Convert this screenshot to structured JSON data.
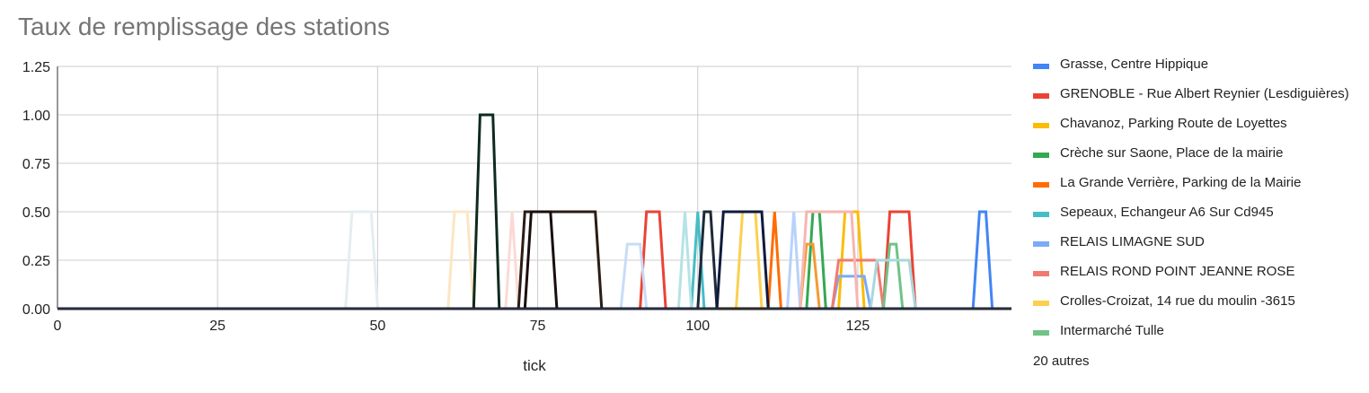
{
  "chart_data": {
    "type": "line",
    "title": "Taux de remplissage des stations",
    "xlabel": "tick",
    "ylabel": "",
    "xlim": [
      0,
      149
    ],
    "ylim": [
      0,
      1.25
    ],
    "x_ticks": [
      "0",
      "25",
      "50",
      "75",
      "100",
      "125"
    ],
    "y_ticks": [
      "0.00",
      "0.25",
      "0.50",
      "0.75",
      "1.00",
      "1.25"
    ],
    "grid": true,
    "legend_position": "right",
    "legend_more": "20 autres",
    "series": [
      {
        "name": "Grasse, Centre Hippique",
        "color": "#4285f4",
        "points": [
          [
            0,
            0
          ],
          [
            143,
            0
          ],
          [
            144,
            0.5
          ],
          [
            145,
            0.5
          ],
          [
            146,
            0
          ],
          [
            149,
            0
          ]
        ]
      },
      {
        "name": "GRENOBLE - Rue Albert Reynier (Lesdiguières)",
        "color": "#ea4335",
        "points": [
          [
            0,
            0
          ],
          [
            91,
            0
          ],
          [
            92,
            0.5
          ],
          [
            94,
            0.5
          ],
          [
            95,
            0
          ],
          [
            129,
            0
          ],
          [
            130,
            0.5
          ],
          [
            133,
            0.5
          ],
          [
            134,
            0
          ],
          [
            149,
            0
          ]
        ]
      },
      {
        "name": "Chavanoz, Parking Route de Loyettes",
        "color": "#fbbc04",
        "points": [
          [
            0,
            0
          ],
          [
            122,
            0
          ],
          [
            123,
            0.5
          ],
          [
            125,
            0.5
          ],
          [
            126,
            0
          ],
          [
            149,
            0
          ]
        ]
      },
      {
        "name": "Crèche sur Saone, Place de la mairie",
        "color": "#34a853",
        "points": [
          [
            0,
            0
          ],
          [
            117,
            0
          ],
          [
            118,
            0.5
          ],
          [
            119,
            0.5
          ],
          [
            120,
            0
          ],
          [
            149,
            0
          ]
        ]
      },
      {
        "name": "La Grande Verrière, Parking de la Mairie",
        "color": "#ff6d01",
        "points": [
          [
            0,
            0
          ],
          [
            111,
            0
          ],
          [
            112,
            0.5
          ],
          [
            113,
            0
          ],
          [
            149,
            0
          ]
        ]
      },
      {
        "name": "Sepeaux, Echangeur A6 Sur Cd945",
        "color": "#46bdc6",
        "points": [
          [
            0,
            0
          ],
          [
            99,
            0
          ],
          [
            100,
            0.5
          ],
          [
            101,
            0
          ],
          [
            149,
            0
          ]
        ]
      },
      {
        "name": "RELAIS LIMAGNE SUD",
        "color": "#7baaf7",
        "points": [
          [
            0,
            0
          ],
          [
            121,
            0
          ],
          [
            122,
            0.167
          ],
          [
            126,
            0.167
          ],
          [
            127,
            0
          ],
          [
            149,
            0
          ]
        ]
      },
      {
        "name": "RELAIS  ROND POINT JEANNE ROSE",
        "color": "#f07b72",
        "points": [
          [
            0,
            0
          ],
          [
            121,
            0
          ],
          [
            122,
            0.25
          ],
          [
            128,
            0.25
          ],
          [
            129,
            0
          ],
          [
            149,
            0
          ]
        ]
      },
      {
        "name": "Crolles-Croizat, 14 rue du moulin -3615",
        "color": "#fcd04f",
        "points": [
          [
            0,
            0
          ],
          [
            106,
            0
          ],
          [
            107,
            0.5
          ],
          [
            109,
            0.5
          ],
          [
            110,
            0
          ],
          [
            149,
            0
          ]
        ]
      },
      {
        "name": "Intermarché Tulle",
        "color": "#71c287",
        "points": [
          [
            0,
            0
          ],
          [
            129,
            0
          ],
          [
            130,
            0.333
          ],
          [
            131,
            0.333
          ],
          [
            132,
            0
          ],
          [
            149,
            0
          ]
        ]
      },
      {
        "color": "#f29b34",
        "points": [
          [
            0,
            0
          ],
          [
            116,
            0
          ],
          [
            117,
            0.333
          ],
          [
            118,
            0.333
          ],
          [
            119,
            0
          ],
          [
            149,
            0
          ]
        ]
      },
      {
        "color": "#a8d8dc",
        "points": [
          [
            0,
            0
          ],
          [
            127,
            0
          ],
          [
            128,
            0.25
          ],
          [
            133,
            0.25
          ],
          [
            134,
            0
          ],
          [
            149,
            0
          ]
        ]
      },
      {
        "color": "#b7d2fb",
        "points": [
          [
            0,
            0
          ],
          [
            114,
            0
          ],
          [
            115,
            0.5
          ],
          [
            116,
            0
          ],
          [
            149,
            0
          ]
        ]
      },
      {
        "color": "#f6b6b1",
        "points": [
          [
            0,
            0
          ],
          [
            116,
            0
          ],
          [
            117,
            0.5
          ],
          [
            124,
            0.5
          ],
          [
            125,
            0
          ],
          [
            149,
            0
          ]
        ]
      },
      {
        "color": "#b5e3e6",
        "points": [
          [
            0,
            0
          ],
          [
            97,
            0
          ],
          [
            98,
            0.5
          ],
          [
            99,
            0
          ],
          [
            149,
            0
          ]
        ]
      },
      {
        "color": "#c9dcf7",
        "points": [
          [
            0,
            0
          ],
          [
            88,
            0
          ],
          [
            89,
            0.333
          ],
          [
            91,
            0.333
          ],
          [
            92,
            0
          ],
          [
            149,
            0
          ]
        ]
      },
      {
        "color": "#fde6c4",
        "points": [
          [
            0,
            0
          ],
          [
            61,
            0
          ],
          [
            62,
            0.5
          ],
          [
            64,
            0.5
          ],
          [
            65,
            0
          ],
          [
            149,
            0
          ]
        ]
      },
      {
        "color": "#fcd9d6",
        "points": [
          [
            0,
            0
          ],
          [
            70,
            0
          ],
          [
            71,
            0.5
          ],
          [
            72,
            0
          ],
          [
            149,
            0
          ]
        ]
      },
      {
        "color": "#e3eef0",
        "points": [
          [
            0,
            0
          ],
          [
            45,
            0
          ],
          [
            46,
            0.5
          ],
          [
            49,
            0.5
          ],
          [
            50,
            0
          ],
          [
            149,
            0
          ]
        ]
      },
      {
        "color": "#1e2a3a",
        "points": [
          [
            0,
            0
          ],
          [
            100,
            0
          ],
          [
            101,
            0.5
          ],
          [
            102,
            0.5
          ],
          [
            103,
            0
          ],
          [
            149,
            0
          ]
        ]
      },
      {
        "color": "#0e2a1f",
        "points": [
          [
            0,
            0
          ],
          [
            65,
            0
          ],
          [
            66,
            1.0
          ],
          [
            68,
            1.0
          ],
          [
            69,
            0
          ],
          [
            149,
            0
          ]
        ]
      },
      {
        "color": "#2b1d14",
        "points": [
          [
            0,
            0
          ],
          [
            72,
            0
          ],
          [
            73,
            0.5
          ],
          [
            84,
            0.5
          ],
          [
            85,
            0
          ],
          [
            149,
            0
          ]
        ]
      },
      {
        "color": "#1a0e0e",
        "points": [
          [
            0,
            0
          ],
          [
            73,
            0
          ],
          [
            74,
            0.5
          ],
          [
            77,
            0.5
          ],
          [
            78,
            0
          ],
          [
            149,
            0
          ]
        ]
      },
      {
        "color": "#0f1b3d",
        "points": [
          [
            0,
            0
          ],
          [
            103,
            0
          ],
          [
            104,
            0.5
          ],
          [
            110,
            0.5
          ],
          [
            111,
            0
          ],
          [
            149,
            0
          ]
        ]
      }
    ]
  }
}
